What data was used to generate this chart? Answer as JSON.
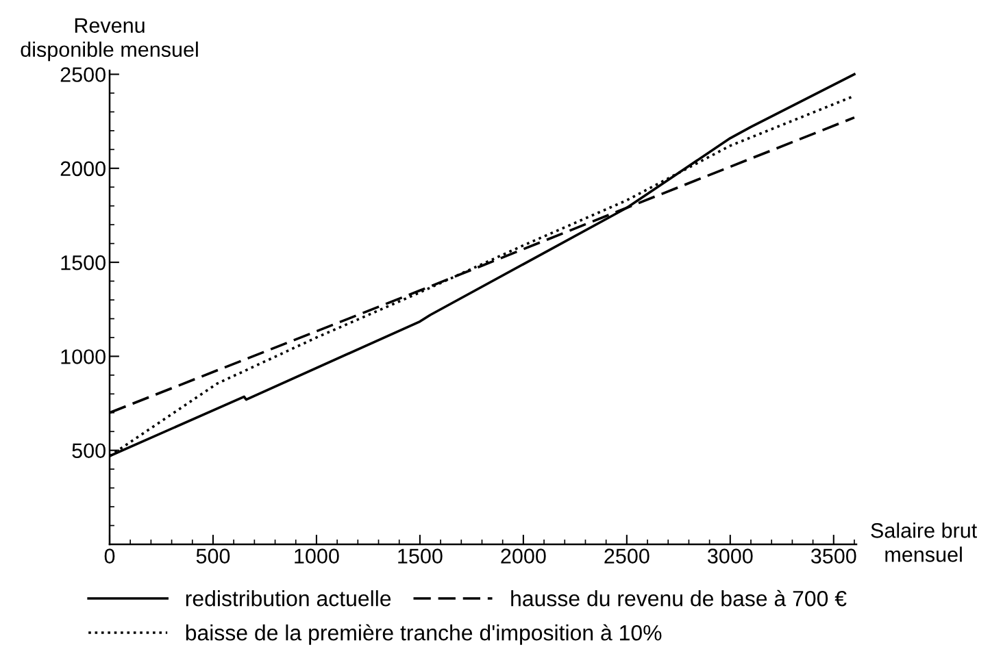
{
  "chart_data": {
    "type": "line",
    "xlabel": "Salaire brut\nmensuel",
    "ylabel": "Revenu\ndisponible mensuel",
    "xlim": [
      0,
      3610
    ],
    "ylim": [
      0,
      2520
    ],
    "xticks": [
      0,
      {
        "value": 100,
        "label": null
      },
      {
        "value": 200,
        "label": null
      },
      {
        "value": 300,
        "label": null
      },
      {
        "value": 400,
        "label": null
      },
      500,
      {
        "value": 600,
        "label": null
      },
      {
        "value": 700,
        "label": null
      },
      {
        "value": 800,
        "label": null
      },
      {
        "value": 900,
        "label": null
      },
      1000,
      {
        "value": 1100,
        "label": null
      },
      {
        "value": 1200,
        "label": null
      },
      {
        "value": 1300,
        "label": null
      },
      {
        "value": 1400,
        "label": null
      },
      1500,
      {
        "value": 1600,
        "label": null
      },
      {
        "value": 1700,
        "label": null
      },
      {
        "value": 1800,
        "label": null
      },
      {
        "value": 1900,
        "label": null
      },
      2000,
      {
        "value": 2100,
        "label": null
      },
      {
        "value": 2200,
        "label": null
      },
      {
        "value": 2300,
        "label": null
      },
      {
        "value": 2400,
        "label": null
      },
      2500,
      {
        "value": 2600,
        "label": null
      },
      {
        "value": 2700,
        "label": null
      },
      {
        "value": 2800,
        "label": null
      },
      {
        "value": 2900,
        "label": null
      },
      3000,
      {
        "value": 3100,
        "label": null
      },
      {
        "value": 3200,
        "label": null
      },
      {
        "value": 3300,
        "label": null
      },
      {
        "value": 3400,
        "label": null
      },
      3500,
      {
        "value": 3600,
        "label": null
      }
    ],
    "yticks": [
      {
        "value": 100,
        "label": null
      },
      {
        "value": 200,
        "label": null
      },
      {
        "value": 300,
        "label": null
      },
      {
        "value": 400,
        "label": null
      },
      500,
      {
        "value": 600,
        "label": null
      },
      {
        "value": 700,
        "label": null
      },
      {
        "value": 800,
        "label": null
      },
      {
        "value": 900,
        "label": null
      },
      1000,
      {
        "value": 1100,
        "label": null
      },
      {
        "value": 1200,
        "label": null
      },
      {
        "value": 1300,
        "label": null
      },
      {
        "value": 1400,
        "label": null
      },
      1500,
      {
        "value": 1600,
        "label": null
      },
      {
        "value": 1700,
        "label": null
      },
      {
        "value": 1800,
        "label": null
      },
      {
        "value": 1900,
        "label": null
      },
      2000,
      {
        "value": 2100,
        "label": null
      },
      {
        "value": 2200,
        "label": null
      },
      {
        "value": 2300,
        "label": null
      },
      {
        "value": 2400,
        "label": null
      },
      2500
    ],
    "grid": false,
    "legend": "bottom",
    "series": [
      {
        "name": "redistribution actuelle",
        "color": "#000000",
        "line_style": "solid",
        "x": [
          0,
          650,
          660,
          1500,
          1550,
          2000,
          2500,
          3000,
          3100,
          3600
        ],
        "values": [
          470,
          785,
          770,
          1185,
          1220,
          1490,
          1790,
          2160,
          2220,
          2500
        ]
      },
      {
        "name": "hausse du revenu de base à 700 €",
        "color": "#000000",
        "line_style": "dashed",
        "x": [
          0,
          1500,
          2500,
          3600
        ],
        "values": [
          700,
          1350,
          1790,
          2270
        ]
      },
      {
        "name": "baisse de la première tranche d'imposition à 10%",
        "color": "#000000",
        "line_style": "dotted",
        "x": [
          0,
          520,
          1000,
          1500,
          2000,
          2500,
          3000,
          3600
        ],
        "values": [
          470,
          855,
          1100,
          1340,
          1590,
          1830,
          2120,
          2385
        ]
      }
    ]
  }
}
